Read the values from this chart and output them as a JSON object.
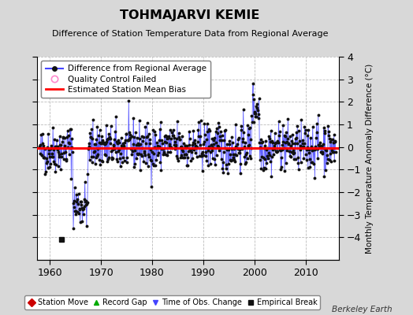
{
  "title": "TOHMAJARVI KEMIE",
  "subtitle": "Difference of Station Temperature Data from Regional Average",
  "ylabel_right": "Monthly Temperature Anomaly Difference (°C)",
  "xlim": [
    1957.5,
    2016.5
  ],
  "ylim": [
    -5,
    4
  ],
  "yticks": [
    -4,
    -3,
    -2,
    -1,
    0,
    1,
    2,
    3,
    4
  ],
  "xticks": [
    1960,
    1970,
    1980,
    1990,
    2000,
    2010
  ],
  "bias_value": -0.05,
  "line_color": "#4444ff",
  "bias_color": "#ff0000",
  "bg_color": "#d8d8d8",
  "plot_bg_color": "#ffffff",
  "grid_color": "#bbbbbb",
  "empirical_break_year": 1962.25,
  "empirical_break_y": -4.1,
  "seed": 42,
  "years_start": 1958.0,
  "years_end": 2015.917
}
